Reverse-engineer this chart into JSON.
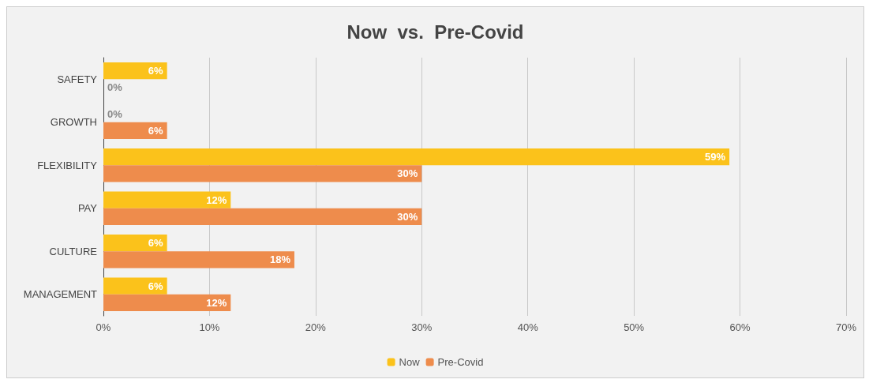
{
  "chart_data": {
    "type": "bar",
    "orientation": "horizontal",
    "title": "Now  vs.  Pre-Covid",
    "categories": [
      "SAFETY",
      "GROWTH",
      "FLEXIBILITY",
      "PAY",
      "CULTURE",
      "MANAGEMENT"
    ],
    "series": [
      {
        "name": "Now",
        "color": "#fbc21b",
        "values": [
          6,
          0,
          59,
          12,
          6,
          6
        ],
        "value_labels": [
          "6%",
          "0%",
          "59%",
          "12%",
          "6%",
          "6%"
        ]
      },
      {
        "name": "Pre-Covid",
        "color": "#ee8c4c",
        "values": [
          0,
          6,
          30,
          30,
          18,
          12
        ],
        "value_labels": [
          "0%",
          "6%",
          "30%",
          "30%",
          "18%",
          "12%"
        ]
      }
    ],
    "xlim": [
      0,
      70
    ],
    "xticks": [
      {
        "value": 0,
        "label": "0%"
      },
      {
        "value": 10,
        "label": "10%"
      },
      {
        "value": 20,
        "label": "20%"
      },
      {
        "value": 30,
        "label": "30%"
      },
      {
        "value": 40,
        "label": "40%"
      },
      {
        "value": 50,
        "label": "50%"
      },
      {
        "value": 60,
        "label": "60%"
      },
      {
        "value": 70,
        "label": "70%"
      }
    ],
    "grid": "x",
    "legend": "bottom"
  }
}
